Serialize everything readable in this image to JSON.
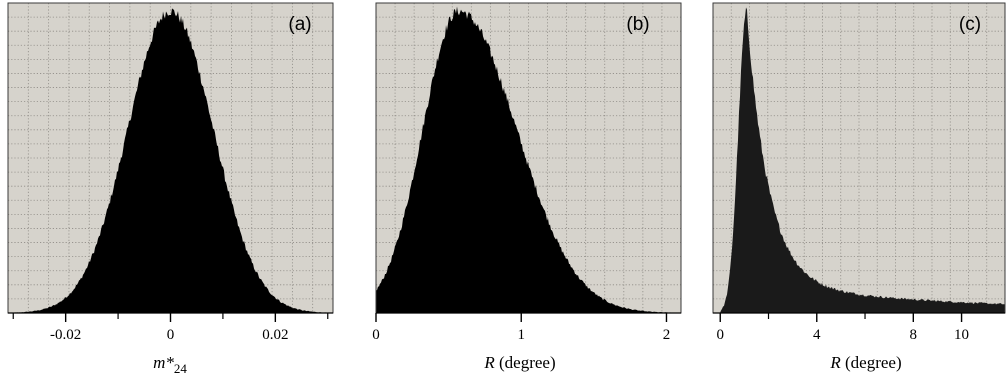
{
  "chart_data": [
    {
      "type": "histogram",
      "panel_label": "(a)",
      "xlabel": {
        "main": "m*",
        "sub": "24"
      },
      "xlim": [
        -0.031,
        0.031
      ],
      "ticks": [
        -0.02,
        0,
        0.02
      ],
      "tick_labels": [
        "-0.02",
        "0",
        "0.02"
      ],
      "minor_ticks": [
        -0.03,
        -0.01,
        0.01,
        0.03
      ],
      "distribution": {
        "shape": "gaussian",
        "peak_x": 0.0,
        "sigma": 0.0082
      },
      "grid": true,
      "plot_color": "#d6d3cc",
      "bar_color": "#000000"
    },
    {
      "type": "histogram",
      "panel_label": "(b)",
      "xlabel": {
        "main": "R",
        "rest": " (degree)"
      },
      "xlim": [
        0,
        2.1
      ],
      "ticks": [
        0,
        1,
        2
      ],
      "tick_labels": [
        "0",
        "1",
        "2"
      ],
      "minor_ticks": [],
      "distribution": {
        "shape": "skewed",
        "peak_x": 0.57,
        "sigma_left": 0.25,
        "sigma_right": 0.4
      },
      "grid": true,
      "plot_color": "#d6d3cc",
      "bar_color": "#000000"
    },
    {
      "type": "histogram",
      "panel_label": "(c)",
      "xlabel": {
        "main": "R",
        "rest": " (degree)"
      },
      "xlim": [
        -0.3,
        11.8
      ],
      "ticks": [
        0,
        4,
        8,
        10
      ],
      "tick_labels": [
        "0",
        "4",
        "8",
        "10"
      ],
      "minor_ticks": [
        2,
        6
      ],
      "distribution": {
        "shape": "heavy-tail",
        "peak_x": 1.1,
        "sigma_left": 0.35,
        "decay": 0.9,
        "tail_level": 0.095,
        "tail_decay": 0.11
      },
      "grid": true,
      "plot_color": "#d6d3cc",
      "bar_color": "#1a1a1a"
    }
  ]
}
